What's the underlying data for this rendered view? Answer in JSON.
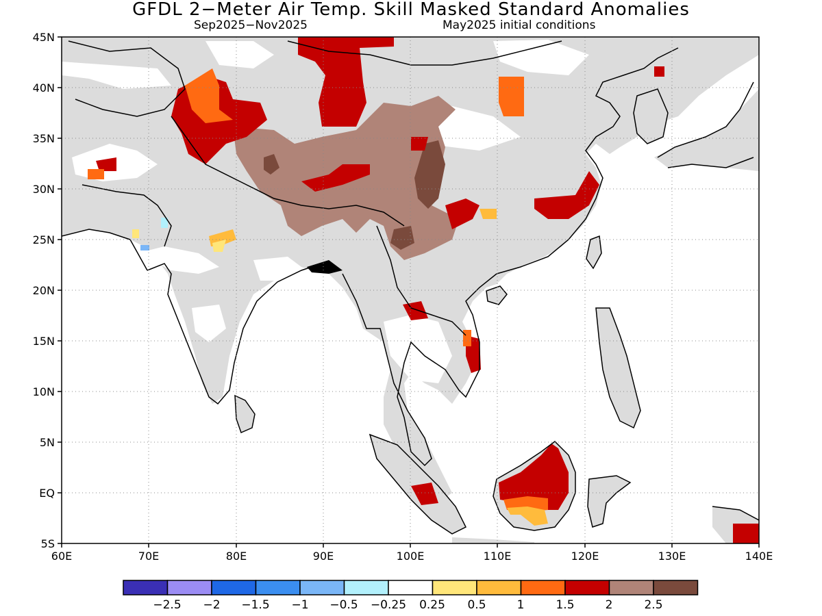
{
  "title": "GFDL 2−Meter Air Temp. Skill Masked Standard Anomalies",
  "subtitle_left": "Sep2025−Nov2025",
  "subtitle_right": "May2025 initial conditions",
  "map": {
    "lon_range": [
      60,
      140
    ],
    "lat_range": [
      -5,
      45
    ],
    "lon_ticks": [
      "60E",
      "70E",
      "80E",
      "90E",
      "100E",
      "110E",
      "120E",
      "130E",
      "140E"
    ],
    "lat_ticks": [
      "5S",
      "EQ",
      "5N",
      "10N",
      "15N",
      "20N",
      "25N",
      "30N",
      "35N",
      "40N",
      "45N"
    ],
    "grid": "dotted",
    "colors": {
      "land_no_skill": "#dcdcdc",
      "ocean": "#ffffff",
      "coast": "#000000"
    }
  },
  "colorbar": {
    "colors": [
      "#3a2fb5",
      "#9b8cf4",
      "#1f68e6",
      "#3b8ef0",
      "#7ab6f7",
      "#b2f0fc",
      "#ffffff",
      "#ffe67a",
      "#ffbb3c",
      "#ff6a12",
      "#c40000",
      "#b08478",
      "#7a4a3c"
    ],
    "labels": [
      "−2.5",
      "−2",
      "−1.5",
      "−1",
      "−0.5",
      "−0.25",
      "0.25",
      "0.5",
      "1",
      "1.5",
      "2",
      "2.5"
    ]
  },
  "anomaly_regions": [
    {
      "class": "2",
      "name": "tarim-north"
    },
    {
      "class": "2.5",
      "name": "tibet"
    },
    {
      "class": "1.5",
      "name": "pamir"
    },
    {
      "class": "2",
      "name": "borneo"
    }
  ]
}
